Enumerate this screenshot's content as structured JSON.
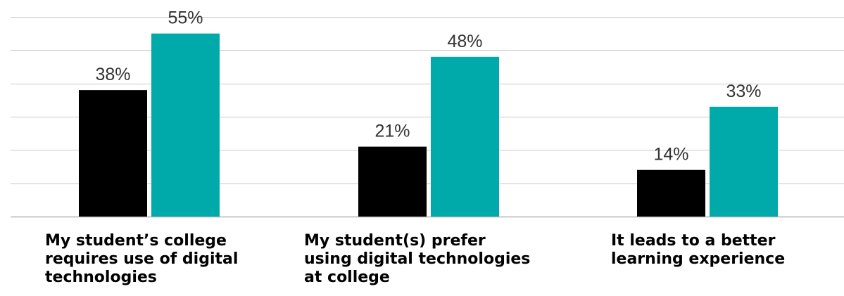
{
  "chart_data": {
    "type": "bar",
    "categories": [
      "My student’s college\nrequires use of digital\ntechnologies",
      "My student(s) prefer\nusing digital technologies\nat college",
      "It leads to a better\nlearning experience"
    ],
    "series": [
      {
        "values": [
          38,
          21,
          14
        ],
        "labels": [
          "38%",
          "21%",
          "14%"
        ],
        "color": "#000000"
      },
      {
        "values": [
          55,
          48,
          33
        ],
        "labels": [
          "55%",
          "48%",
          "33%"
        ],
        "color": "#00AAAA"
      }
    ],
    "ylim": [
      0,
      60
    ],
    "grid": true,
    "gridline_color": "#C8C8C8",
    "axis_color": "#B4B4B4"
  }
}
